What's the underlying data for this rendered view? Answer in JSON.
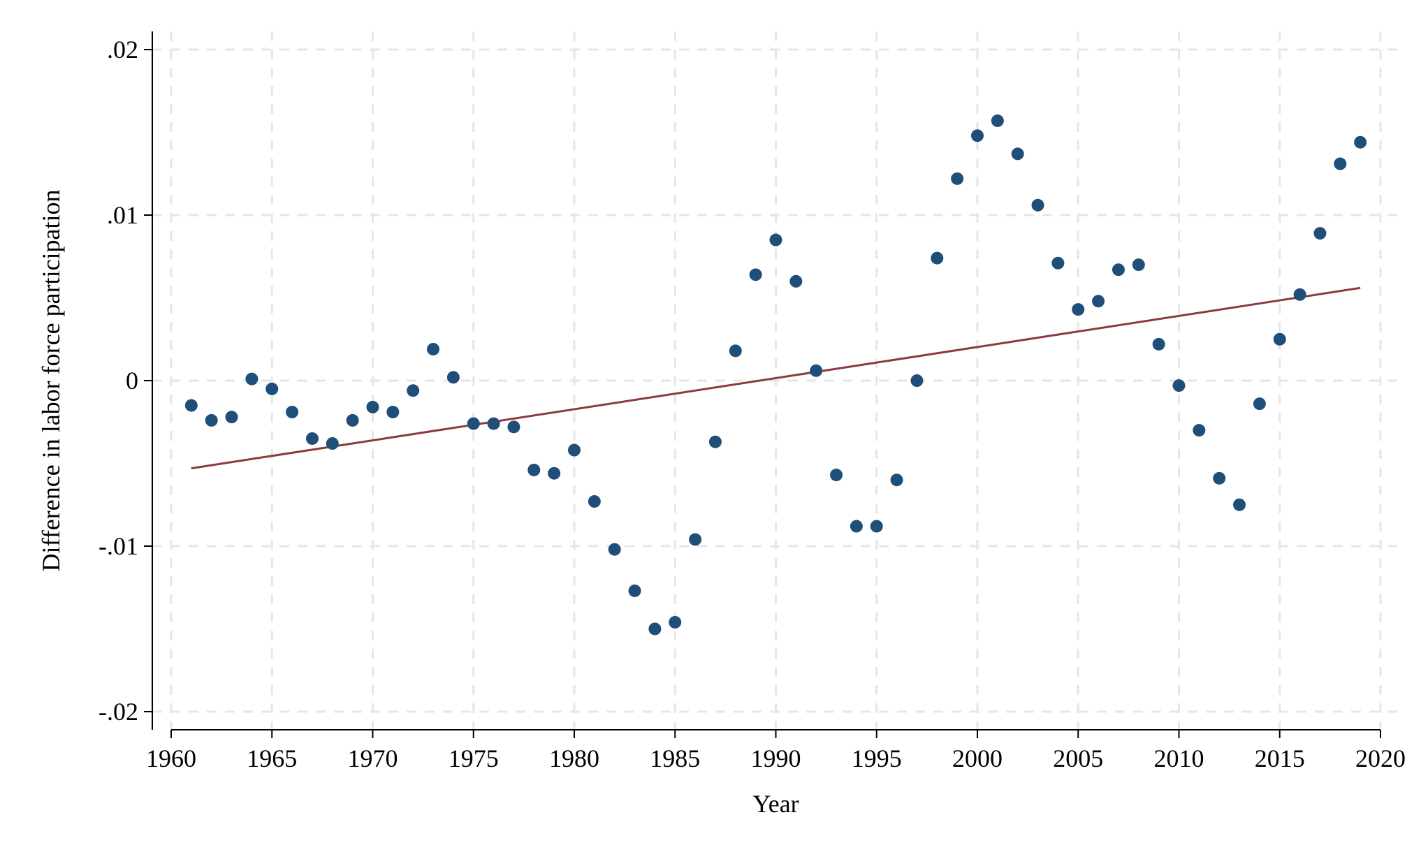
{
  "chart_data": {
    "type": "scatter",
    "xlabel": "Year",
    "ylabel": "Difference in labor force participation",
    "xlim": [
      1960,
      2020
    ],
    "ylim": [
      -0.02,
      0.02
    ],
    "xticks": [
      1960,
      1965,
      1970,
      1975,
      1980,
      1985,
      1990,
      1995,
      2000,
      2005,
      2010,
      2015,
      2020
    ],
    "yticks": [
      -0.02,
      -0.01,
      0,
      0.01,
      0.02
    ],
    "ytick_labels": [
      "-.02",
      "-.01",
      "0",
      ".01",
      ".02"
    ],
    "grid": true,
    "series": [
      {
        "type": "scatter",
        "x": [
          1961,
          1962,
          1963,
          1964,
          1965,
          1966,
          1967,
          1968,
          1969,
          1970,
          1971,
          1972,
          1973,
          1974,
          1975,
          1976,
          1977,
          1978,
          1979,
          1980,
          1981,
          1982,
          1983,
          1984,
          1985,
          1986,
          1987,
          1988,
          1989,
          1990,
          1991,
          1992,
          1993,
          1994,
          1995,
          1996,
          1997,
          1998,
          1999,
          2000,
          2001,
          2002,
          2003,
          2004,
          2005,
          2006,
          2007,
          2008,
          2009,
          2010,
          2011,
          2012,
          2013,
          2014,
          2015,
          2016,
          2017,
          2018,
          2019
        ],
        "y": [
          -0.0015,
          -0.0024,
          -0.0022,
          0.0001,
          -0.0005,
          -0.0019,
          -0.0035,
          -0.0038,
          -0.0024,
          -0.0016,
          -0.0019,
          -0.0006,
          0.0019,
          0.0002,
          -0.0026,
          -0.0026,
          -0.0028,
          -0.0054,
          -0.0056,
          -0.0042,
          -0.0073,
          -0.0102,
          -0.0127,
          -0.015,
          -0.0146,
          -0.0096,
          -0.0037,
          0.0018,
          0.0064,
          0.0085,
          0.006,
          0.0006,
          -0.0057,
          -0.0088,
          -0.0088,
          -0.006,
          0.0,
          0.0074,
          0.0122,
          0.0148,
          0.0157,
          0.0137,
          0.0106,
          0.0071,
          0.0043,
          0.0048,
          0.0067,
          0.007,
          0.0022,
          -0.0003,
          -0.003,
          -0.0059,
          -0.0075,
          -0.0014,
          0.0025,
          0.0052,
          0.0089,
          0.0131,
          0.0144
        ],
        "color": "#1f4e79"
      },
      {
        "type": "line",
        "x": [
          1961,
          2019
        ],
        "y": [
          -0.0053,
          0.0056
        ],
        "color": "#8b3a3f"
      }
    ]
  }
}
